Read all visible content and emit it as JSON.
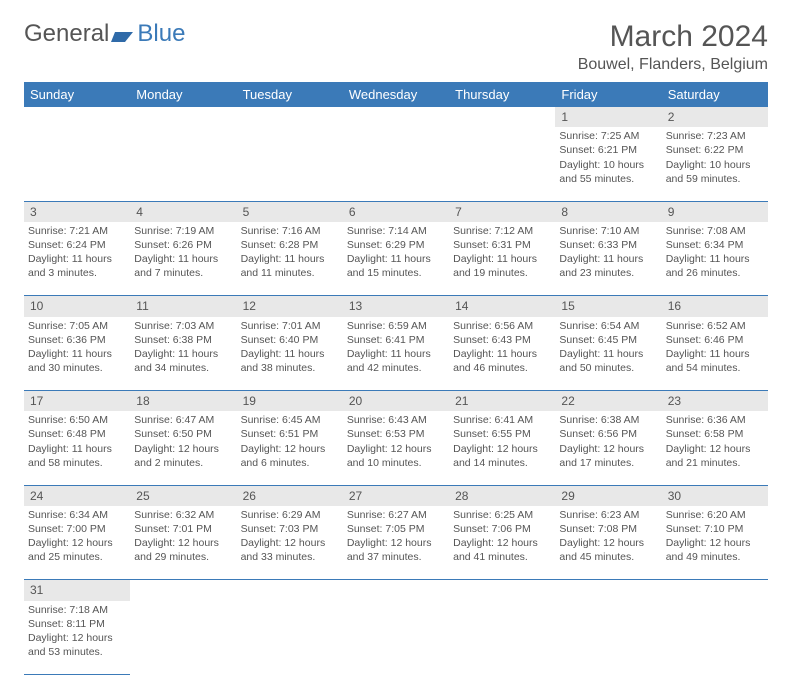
{
  "logo": {
    "text_a": "General",
    "text_b": "Blue",
    "icon_color": "#2f6aa8"
  },
  "title": "March 2024",
  "location": "Bouwel, Flanders, Belgium",
  "colors": {
    "header_bg": "#3b7ab8",
    "header_text": "#ffffff",
    "daynum_bg": "#e8e8e8",
    "text": "#555555",
    "rule": "#3b7ab8"
  },
  "weekdays": [
    "Sunday",
    "Monday",
    "Tuesday",
    "Wednesday",
    "Thursday",
    "Friday",
    "Saturday"
  ],
  "rows": [
    {
      "nums": [
        "",
        "",
        "",
        "",
        "",
        "1",
        "2"
      ],
      "cells": [
        null,
        null,
        null,
        null,
        null,
        {
          "sunrise": "7:25 AM",
          "sunset": "6:21 PM",
          "daylight": "10 hours and 55 minutes."
        },
        {
          "sunrise": "7:23 AM",
          "sunset": "6:22 PM",
          "daylight": "10 hours and 59 minutes."
        }
      ]
    },
    {
      "nums": [
        "3",
        "4",
        "5",
        "6",
        "7",
        "8",
        "9"
      ],
      "cells": [
        {
          "sunrise": "7:21 AM",
          "sunset": "6:24 PM",
          "daylight": "11 hours and 3 minutes."
        },
        {
          "sunrise": "7:19 AM",
          "sunset": "6:26 PM",
          "daylight": "11 hours and 7 minutes."
        },
        {
          "sunrise": "7:16 AM",
          "sunset": "6:28 PM",
          "daylight": "11 hours and 11 minutes."
        },
        {
          "sunrise": "7:14 AM",
          "sunset": "6:29 PM",
          "daylight": "11 hours and 15 minutes."
        },
        {
          "sunrise": "7:12 AM",
          "sunset": "6:31 PM",
          "daylight": "11 hours and 19 minutes."
        },
        {
          "sunrise": "7:10 AM",
          "sunset": "6:33 PM",
          "daylight": "11 hours and 23 minutes."
        },
        {
          "sunrise": "7:08 AM",
          "sunset": "6:34 PM",
          "daylight": "11 hours and 26 minutes."
        }
      ]
    },
    {
      "nums": [
        "10",
        "11",
        "12",
        "13",
        "14",
        "15",
        "16"
      ],
      "cells": [
        {
          "sunrise": "7:05 AM",
          "sunset": "6:36 PM",
          "daylight": "11 hours and 30 minutes."
        },
        {
          "sunrise": "7:03 AM",
          "sunset": "6:38 PM",
          "daylight": "11 hours and 34 minutes."
        },
        {
          "sunrise": "7:01 AM",
          "sunset": "6:40 PM",
          "daylight": "11 hours and 38 minutes."
        },
        {
          "sunrise": "6:59 AM",
          "sunset": "6:41 PM",
          "daylight": "11 hours and 42 minutes."
        },
        {
          "sunrise": "6:56 AM",
          "sunset": "6:43 PM",
          "daylight": "11 hours and 46 minutes."
        },
        {
          "sunrise": "6:54 AM",
          "sunset": "6:45 PM",
          "daylight": "11 hours and 50 minutes."
        },
        {
          "sunrise": "6:52 AM",
          "sunset": "6:46 PM",
          "daylight": "11 hours and 54 minutes."
        }
      ]
    },
    {
      "nums": [
        "17",
        "18",
        "19",
        "20",
        "21",
        "22",
        "23"
      ],
      "cells": [
        {
          "sunrise": "6:50 AM",
          "sunset": "6:48 PM",
          "daylight": "11 hours and 58 minutes."
        },
        {
          "sunrise": "6:47 AM",
          "sunset": "6:50 PM",
          "daylight": "12 hours and 2 minutes."
        },
        {
          "sunrise": "6:45 AM",
          "sunset": "6:51 PM",
          "daylight": "12 hours and 6 minutes."
        },
        {
          "sunrise": "6:43 AM",
          "sunset": "6:53 PM",
          "daylight": "12 hours and 10 minutes."
        },
        {
          "sunrise": "6:41 AM",
          "sunset": "6:55 PM",
          "daylight": "12 hours and 14 minutes."
        },
        {
          "sunrise": "6:38 AM",
          "sunset": "6:56 PM",
          "daylight": "12 hours and 17 minutes."
        },
        {
          "sunrise": "6:36 AM",
          "sunset": "6:58 PM",
          "daylight": "12 hours and 21 minutes."
        }
      ]
    },
    {
      "nums": [
        "24",
        "25",
        "26",
        "27",
        "28",
        "29",
        "30"
      ],
      "cells": [
        {
          "sunrise": "6:34 AM",
          "sunset": "7:00 PM",
          "daylight": "12 hours and 25 minutes."
        },
        {
          "sunrise": "6:32 AM",
          "sunset": "7:01 PM",
          "daylight": "12 hours and 29 minutes."
        },
        {
          "sunrise": "6:29 AM",
          "sunset": "7:03 PM",
          "daylight": "12 hours and 33 minutes."
        },
        {
          "sunrise": "6:27 AM",
          "sunset": "7:05 PM",
          "daylight": "12 hours and 37 minutes."
        },
        {
          "sunrise": "6:25 AM",
          "sunset": "7:06 PM",
          "daylight": "12 hours and 41 minutes."
        },
        {
          "sunrise": "6:23 AM",
          "sunset": "7:08 PM",
          "daylight": "12 hours and 45 minutes."
        },
        {
          "sunrise": "6:20 AM",
          "sunset": "7:10 PM",
          "daylight": "12 hours and 49 minutes."
        }
      ]
    },
    {
      "nums": [
        "31",
        "",
        "",
        "",
        "",
        "",
        ""
      ],
      "cells": [
        {
          "sunrise": "7:18 AM",
          "sunset": "8:11 PM",
          "daylight": "12 hours and 53 minutes."
        },
        null,
        null,
        null,
        null,
        null,
        null
      ]
    }
  ],
  "labels": {
    "sunrise": "Sunrise:",
    "sunset": "Sunset:",
    "daylight": "Daylight:"
  }
}
